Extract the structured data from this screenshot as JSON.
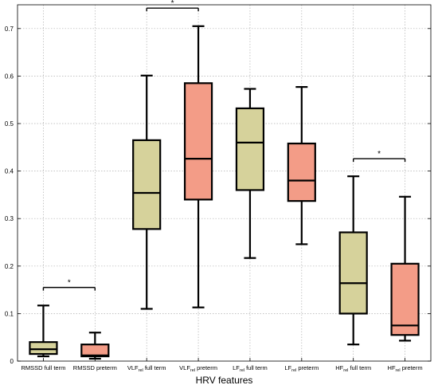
{
  "chart_data": {
    "type": "box",
    "xlabel": "HRV features",
    "ylabel": "",
    "ylim": [
      0,
      0.75
    ],
    "yticks": [
      0,
      0.1,
      0.2,
      0.3,
      0.4,
      0.5,
      0.6,
      0.7
    ],
    "ytick_labels": [
      "0",
      "0.1",
      "0.2",
      "0.3",
      "0.4",
      "0.5",
      "0.6",
      "0.7"
    ],
    "grid": true,
    "colors": {
      "full_term": "#d6d29b",
      "preterm": "#f39c87"
    },
    "categories": [
      {
        "base": "RMSSD",
        "sub": "",
        "suffix": " full term"
      },
      {
        "base": "RMSSD",
        "sub": "",
        "suffix": " preterm"
      },
      {
        "base": "VLF",
        "sub": "rel",
        "suffix": " full term"
      },
      {
        "base": "VLF",
        "sub": "rel",
        "suffix": " preterm"
      },
      {
        "base": "LF",
        "sub": "rel",
        "suffix": " full term"
      },
      {
        "base": "LF",
        "sub": "rel",
        "suffix": " preterm"
      },
      {
        "base": "HF",
        "sub": "rel",
        "suffix": " full term"
      },
      {
        "base": "HF",
        "sub": "rel",
        "suffix": " preterm"
      }
    ],
    "boxes": [
      {
        "group": "full_term",
        "min": 0.01,
        "q1": 0.015,
        "median": 0.025,
        "q3": 0.04,
        "max": 0.117
      },
      {
        "group": "preterm",
        "min": 0.005,
        "q1": 0.01,
        "median": 0.012,
        "q3": 0.035,
        "max": 0.06
      },
      {
        "group": "full_term",
        "min": 0.11,
        "q1": 0.278,
        "median": 0.354,
        "q3": 0.465,
        "max": 0.601
      },
      {
        "group": "preterm",
        "min": 0.113,
        "q1": 0.34,
        "median": 0.426,
        "q3": 0.585,
        "max": 0.705
      },
      {
        "group": "full_term",
        "min": 0.217,
        "q1": 0.36,
        "median": 0.46,
        "q3": 0.532,
        "max": 0.573
      },
      {
        "group": "preterm",
        "min": 0.246,
        "q1": 0.337,
        "median": 0.38,
        "q3": 0.458,
        "max": 0.577
      },
      {
        "group": "full_term",
        "min": 0.035,
        "q1": 0.1,
        "median": 0.164,
        "q3": 0.271,
        "max": 0.389
      },
      {
        "group": "preterm",
        "min": 0.043,
        "q1": 0.055,
        "median": 0.075,
        "q3": 0.205,
        "max": 0.346
      }
    ],
    "significance": [
      {
        "from": 0,
        "to": 1,
        "y": 0.155,
        "label": "*"
      },
      {
        "from": 2,
        "to": 3,
        "y": 0.743,
        "label": "*"
      },
      {
        "from": 6,
        "to": 7,
        "y": 0.426,
        "label": "*"
      }
    ]
  }
}
